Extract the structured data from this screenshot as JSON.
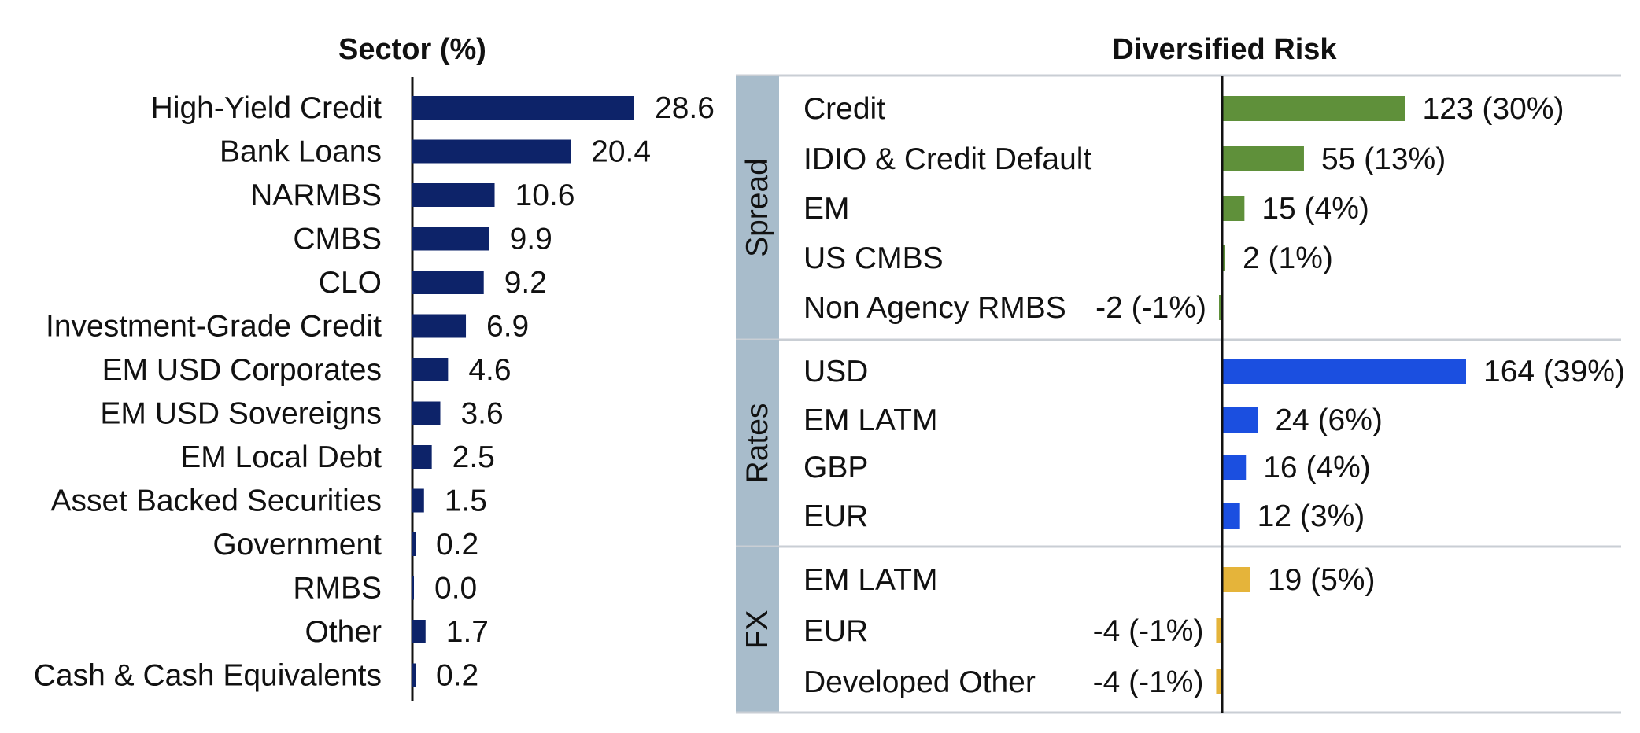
{
  "colors": {
    "sector_bar": "#0d2369",
    "spread": "#5f903a",
    "rates": "#1b4fe0",
    "fx": "#e5b43a",
    "group_band": "#a8bccb",
    "divider": "#c9ced4",
    "axis": "#111111"
  },
  "chart_data": [
    {
      "type": "bar",
      "orientation": "horizontal",
      "title": "Sector (%)",
      "categories": [
        "High-Yield Credit",
        "Bank Loans",
        "NARMBS",
        "CMBS",
        "CLO",
        "Investment-Grade Credit",
        "EM USD Corporates",
        "EM USD Sovereigns",
        "EM Local Debt",
        "Asset Backed Securities",
        "Government",
        "RMBS",
        "Other",
        "Cash & Cash Equivalents"
      ],
      "values": [
        28.6,
        20.4,
        10.6,
        9.9,
        9.2,
        6.9,
        4.6,
        3.6,
        2.5,
        1.5,
        0.2,
        0.0,
        1.7,
        0.2
      ],
      "value_labels": [
        "28.6",
        "20.4",
        "10.6",
        "9.9",
        "9.2",
        "6.9",
        "4.6",
        "3.6",
        "2.5",
        "1.5",
        "0.2",
        "0.0",
        "1.7",
        "0.2"
      ],
      "xlabel": "",
      "ylabel": ""
    },
    {
      "type": "bar",
      "orientation": "horizontal",
      "title": "Diversified Risk",
      "groups": [
        {
          "name": "Spread",
          "color_key": "spread",
          "items": [
            {
              "label": "Credit",
              "value": 123,
              "value_label": "123 (30%)"
            },
            {
              "label": "IDIO & Credit Default",
              "value": 55,
              "value_label": "55 (13%)"
            },
            {
              "label": "EM",
              "value": 15,
              "value_label": "15 (4%)"
            },
            {
              "label": "US CMBS",
              "value": 2,
              "value_label": "2 (1%)"
            },
            {
              "label": "Non Agency RMBS",
              "value": -2,
              "value_label": "-2 (-1%)"
            }
          ]
        },
        {
          "name": "Rates",
          "color_key": "rates",
          "items": [
            {
              "label": "USD",
              "value": 164,
              "value_label": "164 (39%)"
            },
            {
              "label": "EM LATM",
              "value": 24,
              "value_label": "24 (6%)"
            },
            {
              "label": "GBP",
              "value": 16,
              "value_label": "16 (4%)"
            },
            {
              "label": "EUR",
              "value": 12,
              "value_label": "12 (3%)"
            }
          ]
        },
        {
          "name": "FX",
          "color_key": "fx",
          "items": [
            {
              "label": "EM LATM",
              "value": 19,
              "value_label": "19 (5%)"
            },
            {
              "label": "EUR",
              "value": -4,
              "value_label": "-4 (-1%)"
            },
            {
              "label": "Developed Other",
              "value": -4,
              "value_label": "-4 (-1%)"
            }
          ]
        }
      ],
      "xlabel": "",
      "ylabel": ""
    }
  ]
}
